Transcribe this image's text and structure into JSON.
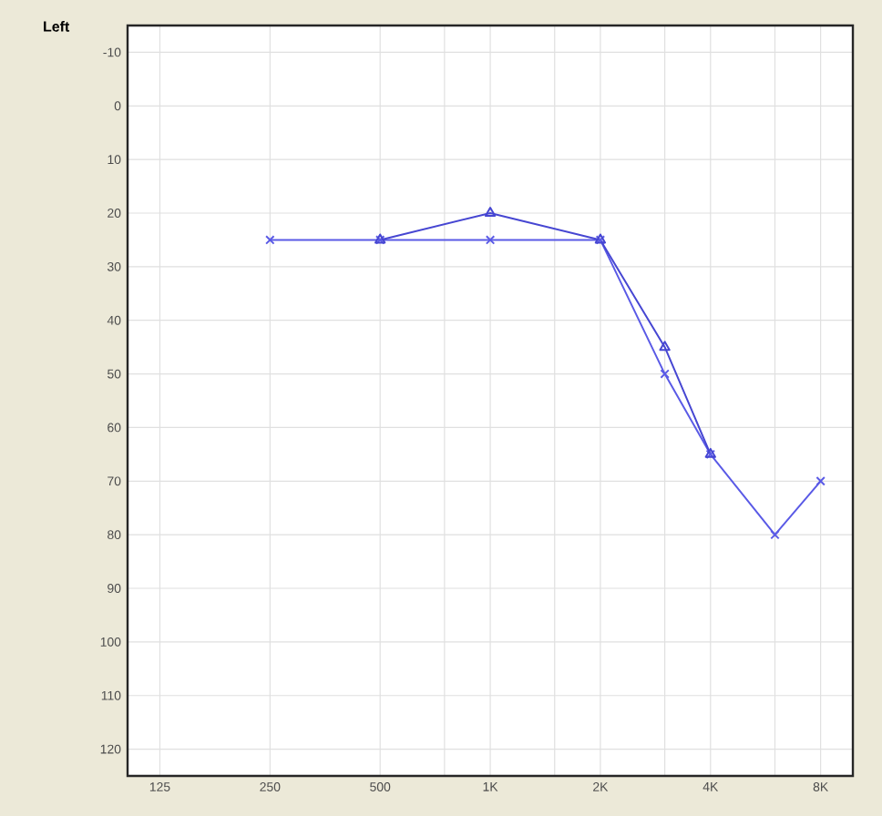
{
  "chart_data": {
    "type": "line",
    "title": "Left",
    "xlim": [
      102,
      9800
    ],
    "ylim": [
      125,
      -15
    ],
    "log": "x",
    "xticks": [
      125,
      {
        "value": 250,
        "label": "250"
      },
      {
        "value": 500,
        "label": "500"
      },
      {
        "value": 750,
        "label": null
      },
      {
        "value": 1000,
        "label": "1K"
      },
      {
        "value": 1500,
        "label": null
      },
      {
        "value": 2000,
        "label": "2K"
      },
      {
        "value": 3000,
        "label": null
      },
      {
        "value": 4000,
        "label": "4K"
      },
      {
        "value": 6000,
        "label": null
      },
      {
        "value": 8000,
        "label": "8K"
      }
    ],
    "yticks": [
      -10,
      0,
      10,
      20,
      30,
      40,
      50,
      60,
      70,
      80,
      90,
      100,
      110,
      120
    ],
    "grid": true,
    "line_style": "solid",
    "series": [
      {
        "color": "#5a5ae6",
        "marker": "cross",
        "x": [
          250,
          500,
          1000,
          2000,
          3000,
          4000,
          6000,
          8000
        ],
        "values": [
          25,
          25,
          25,
          25,
          50,
          65,
          80,
          70
        ]
      },
      {
        "color": "#4646d2",
        "marker": "triangle",
        "x": [
          500,
          1000,
          2000,
          3000,
          4000
        ],
        "values": [
          25,
          20,
          25,
          45,
          65
        ]
      }
    ]
  }
}
